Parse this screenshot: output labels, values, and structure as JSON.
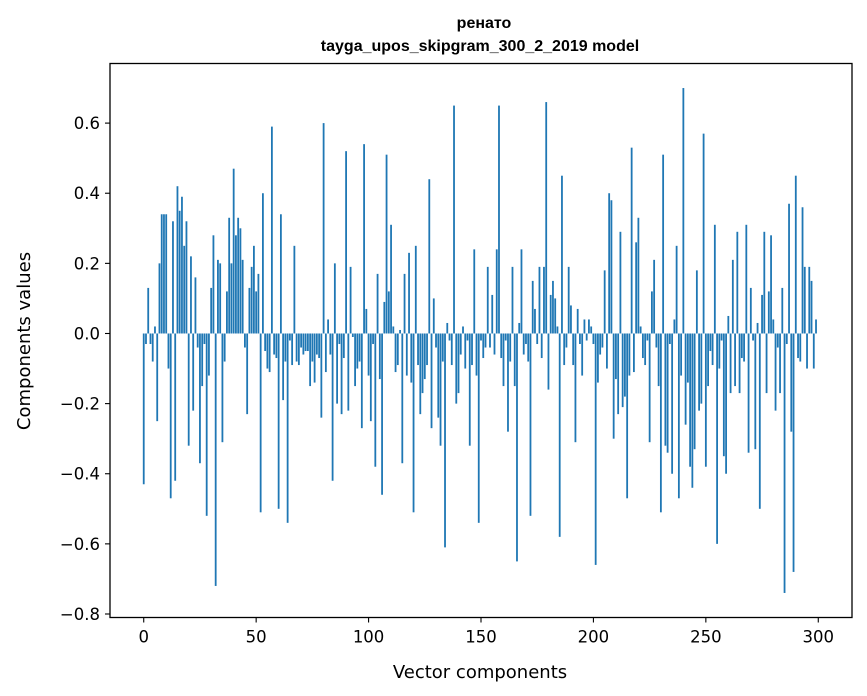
{
  "chart_data": {
    "type": "bar",
    "title_line1": "ренато",
    "title_line2": "tayga_upos_skipgram_300_2_2019 model",
    "xlabel": "Vector components",
    "ylabel": "Components values",
    "xlim": [
      -15,
      315
    ],
    "ylim": [
      -0.81,
      0.77
    ],
    "xticks": [
      0,
      50,
      100,
      150,
      200,
      250,
      300
    ],
    "xtick_labels": [
      "0",
      "50",
      "100",
      "150",
      "200",
      "250",
      "300"
    ],
    "yticks": [
      -0.8,
      -0.6,
      -0.4,
      -0.2,
      0.0,
      0.2,
      0.4,
      0.6
    ],
    "ytick_labels": [
      "−0.8",
      "−0.6",
      "−0.4",
      "−0.2",
      "0.0",
      "0.2",
      "0.4",
      "0.6"
    ],
    "bar_color": "#1f77b4",
    "grid": false,
    "values": [
      -0.43,
      -0.03,
      0.13,
      -0.03,
      -0.08,
      0.02,
      -0.25,
      0.2,
      0.34,
      0.34,
      0.34,
      -0.1,
      -0.47,
      0.32,
      -0.42,
      0.42,
      0.35,
      0.39,
      0.25,
      0.32,
      -0.32,
      0.22,
      -0.22,
      0.16,
      -0.04,
      -0.37,
      -0.15,
      -0.03,
      -0.52,
      -0.12,
      0.13,
      0.28,
      -0.72,
      0.21,
      0.2,
      -0.31,
      -0.08,
      0.12,
      0.33,
      0.2,
      0.47,
      0.28,
      0.33,
      0.3,
      0.21,
      -0.04,
      -0.23,
      0.13,
      0.19,
      0.25,
      0.12,
      0.17,
      -0.51,
      0.4,
      -0.05,
      -0.1,
      -0.11,
      0.59,
      -0.06,
      -0.07,
      -0.5,
      0.34,
      -0.19,
      -0.08,
      -0.54,
      -0.02,
      -0.09,
      0.25,
      -0.08,
      -0.09,
      -0.04,
      -0.06,
      -0.05,
      -0.05,
      -0.15,
      -0.08,
      -0.14,
      -0.06,
      -0.07,
      -0.24,
      0.6,
      -0.11,
      0.04,
      -0.06,
      -0.42,
      0.2,
      -0.2,
      -0.03,
      -0.23,
      -0.07,
      0.52,
      -0.22,
      0.19,
      -0.01,
      -0.15,
      -0.1,
      -0.08,
      -0.27,
      0.54,
      0.07,
      -0.12,
      -0.25,
      -0.03,
      -0.38,
      0.17,
      -0.13,
      -0.46,
      0.09,
      0.51,
      0.12,
      0.31,
      0.02,
      -0.11,
      -0.09,
      0.01,
      -0.37,
      0.17,
      -0.12,
      0.23,
      -0.14,
      -0.51,
      0.25,
      -0.09,
      -0.23,
      -0.17,
      -0.13,
      -0.09,
      0.44,
      -0.27,
      0.1,
      -0.04,
      -0.24,
      -0.32,
      -0.08,
      -0.61,
      0.03,
      -0.02,
      -0.09,
      0.65,
      -0.2,
      -0.17,
      -0.06,
      0.02,
      -0.1,
      -0.02,
      -0.32,
      -0.09,
      0.24,
      -0.12,
      -0.54,
      -0.02,
      -0.07,
      -0.04,
      0.19,
      -0.04,
      0.11,
      -0.06,
      0.24,
      0.65,
      -0.07,
      -0.15,
      -0.02,
      -0.28,
      -0.08,
      0.19,
      -0.15,
      -0.65,
      0.03,
      0.24,
      -0.06,
      -0.03,
      -0.08,
      -0.52,
      0.15,
      0.07,
      -0.03,
      0.19,
      -0.07,
      0.19,
      0.66,
      -0.16,
      0.11,
      0.15,
      0.1,
      0.02,
      -0.58,
      0.45,
      -0.09,
      -0.04,
      0.19,
      0.08,
      -0.09,
      -0.31,
      0.07,
      -0.03,
      -0.12,
      0.04,
      -0.02,
      0.04,
      0.02,
      -0.03,
      -0.66,
      -0.14,
      -0.06,
      -0.04,
      0.18,
      -0.1,
      0.4,
      0.38,
      -0.3,
      -0.13,
      -0.23,
      0.29,
      -0.21,
      -0.18,
      -0.47,
      -0.12,
      0.53,
      -0.11,
      0.26,
      0.33,
      0.02,
      -0.07,
      -0.09,
      -0.02,
      -0.31,
      0.12,
      0.21,
      -0.04,
      -0.15,
      -0.51,
      0.51,
      -0.32,
      -0.34,
      -0.03,
      -0.4,
      0.04,
      0.25,
      -0.47,
      -0.12,
      0.7,
      -0.26,
      -0.14,
      -0.38,
      -0.44,
      -0.33,
      0.18,
      -0.22,
      -0.2,
      0.57,
      -0.38,
      -0.15,
      -0.05,
      -0.09,
      0.31,
      -0.6,
      -0.1,
      -0.02,
      -0.35,
      -0.4,
      0.05,
      -0.17,
      0.21,
      -0.15,
      0.29,
      -0.17,
      -0.07,
      -0.08,
      0.31,
      -0.34,
      0.13,
      -0.02,
      -0.33,
      0.03,
      -0.5,
      0.11,
      0.29,
      -0.17,
      0.12,
      0.28,
      0.04,
      -0.22,
      -0.04,
      -0.17,
      0.13,
      -0.74,
      -0.03,
      0.37,
      -0.28,
      -0.68,
      0.45,
      -0.07,
      -0.08,
      0.36,
      0.19,
      -0.1,
      0.19,
      0.15,
      -0.1,
      0.04
    ]
  }
}
